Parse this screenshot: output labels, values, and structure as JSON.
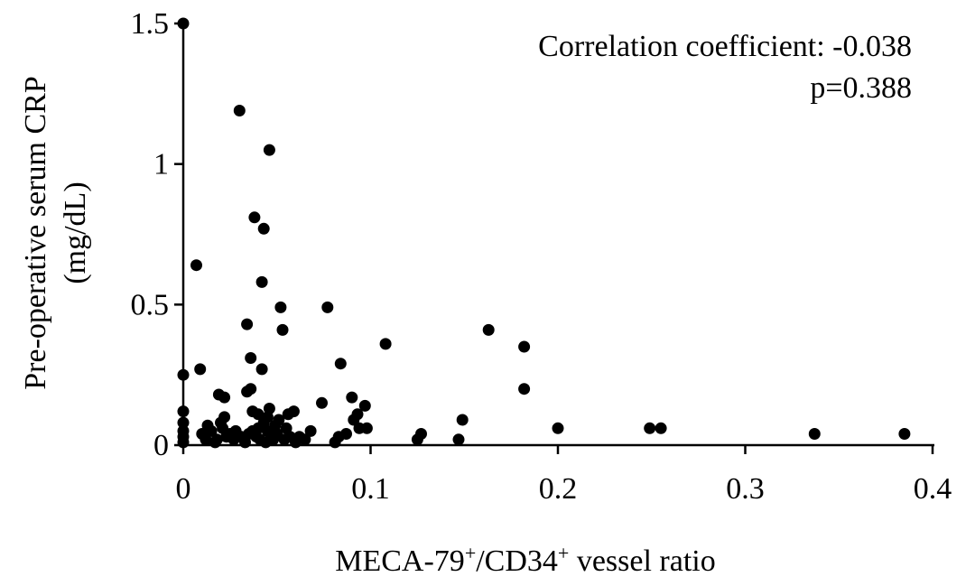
{
  "chart_data": {
    "type": "scatter",
    "title": "",
    "xlabel": {
      "main": "MECA-79",
      "sup1": "+",
      "mid": "/CD34",
      "sup2": "+",
      "tail": " vessel ratio"
    },
    "ylabel": [
      "Pre-operative serum CRP",
      "(mg/dL)"
    ],
    "xlim": [
      0,
      0.4
    ],
    "ylim": [
      0,
      1.5
    ],
    "xticks": [
      0,
      0.1,
      0.2,
      0.3,
      0.4
    ],
    "xtick_labels": [
      "0",
      "0.1",
      "0.2",
      "0.3",
      "0.4"
    ],
    "yticks": [
      0,
      0.5,
      1,
      1.5
    ],
    "ytick_labels": [
      "0",
      "0.5",
      "1",
      "1.5"
    ],
    "grid": false,
    "legend": "none",
    "annotations": [
      "Correlation coefficient: -0.038",
      "p=0.388"
    ],
    "marker_color": "#000000",
    "points": [
      [
        0.0,
        1.5
      ],
      [
        0.0,
        0.25
      ],
      [
        0.0,
        0.12
      ],
      [
        0.0,
        0.08
      ],
      [
        0.0,
        0.05
      ],
      [
        0.0,
        0.03
      ],
      [
        0.0,
        0.01
      ],
      [
        0.007,
        0.64
      ],
      [
        0.009,
        0.27
      ],
      [
        0.01,
        0.04
      ],
      [
        0.012,
        0.02
      ],
      [
        0.013,
        0.07
      ],
      [
        0.015,
        0.05
      ],
      [
        0.017,
        0.01
      ],
      [
        0.018,
        0.02
      ],
      [
        0.019,
        0.18
      ],
      [
        0.02,
        0.08
      ],
      [
        0.021,
        0.06
      ],
      [
        0.022,
        0.17
      ],
      [
        0.022,
        0.1
      ],
      [
        0.023,
        0.03
      ],
      [
        0.025,
        0.04
      ],
      [
        0.027,
        0.02
      ],
      [
        0.028,
        0.05
      ],
      [
        0.03,
        1.19
      ],
      [
        0.031,
        0.03
      ],
      [
        0.033,
        0.01
      ],
      [
        0.034,
        0.43
      ],
      [
        0.034,
        0.19
      ],
      [
        0.035,
        0.04
      ],
      [
        0.036,
        0.2
      ],
      [
        0.036,
        0.31
      ],
      [
        0.037,
        0.12
      ],
      [
        0.037,
        0.05
      ],
      [
        0.038,
        0.81
      ],
      [
        0.039,
        0.03
      ],
      [
        0.04,
        0.11
      ],
      [
        0.04,
        0.06
      ],
      [
        0.041,
        0.02
      ],
      [
        0.042,
        0.58
      ],
      [
        0.042,
        0.27
      ],
      [
        0.043,
        0.77
      ],
      [
        0.043,
        0.08
      ],
      [
        0.044,
        0.01
      ],
      [
        0.045,
        0.05
      ],
      [
        0.045,
        0.1
      ],
      [
        0.046,
        1.05
      ],
      [
        0.046,
        0.13
      ],
      [
        0.047,
        0.03
      ],
      [
        0.048,
        0.02
      ],
      [
        0.049,
        0.07
      ],
      [
        0.05,
        0.04
      ],
      [
        0.051,
        0.09
      ],
      [
        0.052,
        0.49
      ],
      [
        0.053,
        0.41
      ],
      [
        0.054,
        0.02
      ],
      [
        0.055,
        0.06
      ],
      [
        0.056,
        0.11
      ],
      [
        0.057,
        0.03
      ],
      [
        0.059,
        0.12
      ],
      [
        0.06,
        0.01
      ],
      [
        0.062,
        0.03
      ],
      [
        0.065,
        0.02
      ],
      [
        0.068,
        0.05
      ],
      [
        0.074,
        0.15
      ],
      [
        0.077,
        0.49
      ],
      [
        0.081,
        0.01
      ],
      [
        0.083,
        0.03
      ],
      [
        0.084,
        0.29
      ],
      [
        0.087,
        0.04
      ],
      [
        0.09,
        0.17
      ],
      [
        0.091,
        0.09
      ],
      [
        0.093,
        0.11
      ],
      [
        0.094,
        0.06
      ],
      [
        0.097,
        0.14
      ],
      [
        0.098,
        0.06
      ],
      [
        0.108,
        0.36
      ],
      [
        0.125,
        0.02
      ],
      [
        0.127,
        0.04
      ],
      [
        0.147,
        0.02
      ],
      [
        0.149,
        0.09
      ],
      [
        0.163,
        0.41
      ],
      [
        0.182,
        0.35
      ],
      [
        0.182,
        0.2
      ],
      [
        0.2,
        0.06
      ],
      [
        0.249,
        0.06
      ],
      [
        0.255,
        0.06
      ],
      [
        0.337,
        0.04
      ],
      [
        0.385,
        0.04
      ]
    ]
  }
}
